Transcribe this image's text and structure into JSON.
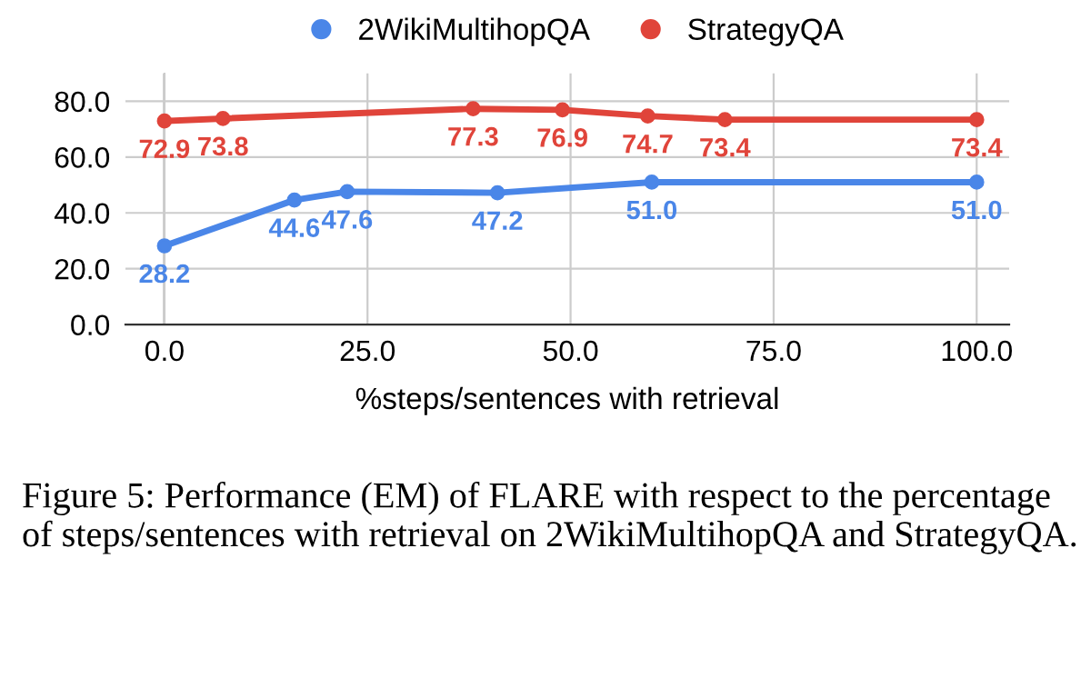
{
  "chart_data": {
    "type": "line",
    "xlabel": "%steps/sentences with retrieval",
    "xlim": [
      -4.8,
      104
    ],
    "xticks": [
      {
        "value": 0,
        "label": "0.0"
      },
      {
        "value": 25,
        "label": "25.0"
      },
      {
        "value": 50,
        "label": "50.0"
      },
      {
        "value": 75,
        "label": "75.0"
      },
      {
        "value": 100,
        "label": "100.0"
      }
    ],
    "ylim": [
      0,
      90
    ],
    "yticks": [
      {
        "value": 0,
        "label": "0.0"
      },
      {
        "value": 20,
        "label": "20.0"
      },
      {
        "value": 40,
        "label": "40.0"
      },
      {
        "value": 60,
        "label": "60.0"
      },
      {
        "value": 80,
        "label": "80.0"
      }
    ],
    "series": [
      {
        "name": "2WikiMultihopQA",
        "color": "#4a86e8",
        "x": [
          0,
          16,
          22.5,
          41,
          60,
          100
        ],
        "values": [
          28.2,
          44.6,
          47.6,
          47.2,
          51.0,
          51.0
        ],
        "value_labels": [
          "28.2",
          "44.6",
          "47.6",
          "47.2",
          "51.0",
          "51.0"
        ]
      },
      {
        "name": "StrategyQA",
        "color": "#e0443a",
        "x": [
          0,
          7.2,
          38,
          49,
          59.5,
          69,
          100
        ],
        "values": [
          72.9,
          73.8,
          77.3,
          76.9,
          74.7,
          73.4,
          73.4
        ],
        "value_labels": [
          "72.9",
          "73.8",
          "77.3",
          "76.9",
          "74.7",
          "73.4",
          "73.4"
        ]
      }
    ],
    "marker": "circle",
    "line_style": "solid",
    "grid": true,
    "legend": "top",
    "annotations": [
      "Figure 5: Performance (EM) of FLARE with respect to the percentage of steps/sentences with retrieval on 2WikiMultihopQA and StrategyQA."
    ]
  }
}
